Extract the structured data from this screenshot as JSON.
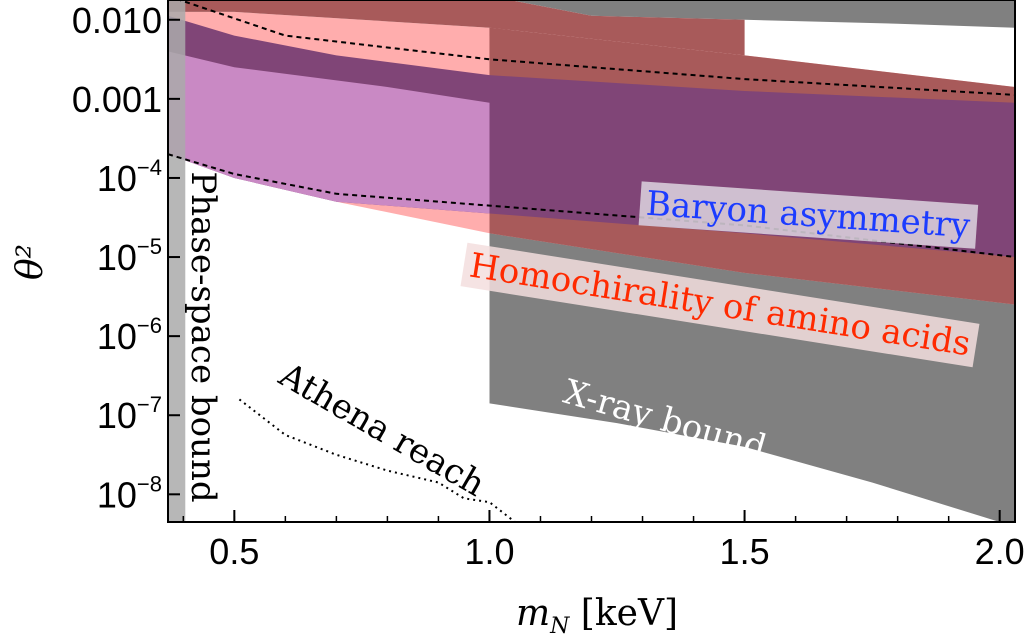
{
  "chart_data": {
    "type": "area",
    "title": "",
    "xlabel": "m_N [keV]",
    "ylabel": "θ²",
    "xlim": [
      0.37,
      2.03
    ],
    "ylim_log10": [
      -8.35,
      -1.75
    ],
    "y_scale": "log",
    "x_ticks": [
      {
        "value": 0.5,
        "label": "0.5"
      },
      {
        "value": 1.0,
        "label": "1.0"
      },
      {
        "value": 1.5,
        "label": "1.5"
      },
      {
        "value": 2.0,
        "label": "2.0"
      }
    ],
    "y_ticks": [
      {
        "log10": -2,
        "label": "0.010",
        "base": "",
        "exp": ""
      },
      {
        "log10": -3,
        "label": "0.001",
        "base": "",
        "exp": ""
      },
      {
        "log10": -4,
        "label": "",
        "base": "10",
        "exp": "−4"
      },
      {
        "log10": -5,
        "label": "",
        "base": "10",
        "exp": "−5"
      },
      {
        "log10": -6,
        "label": "",
        "base": "10",
        "exp": "−6"
      },
      {
        "log10": -7,
        "label": "",
        "base": "10",
        "exp": "−7"
      },
      {
        "log10": -8,
        "label": "",
        "base": "10",
        "exp": "−8"
      }
    ],
    "regions": [
      {
        "name": "X-ray bound",
        "color": "#808080",
        "upper": [
          [
            0.37,
            -1.0
          ],
          [
            2.03,
            -1.0
          ]
        ],
        "lower": [
          [
            0.37,
            -1.0
          ],
          [
            1.0,
            -1.7
          ],
          [
            1.2,
            -1.95
          ],
          [
            1.5,
            -2.0
          ],
          [
            1.8,
            -2.05
          ],
          [
            2.03,
            -2.1
          ]
        ]
      },
      {
        "name": "X-ray bound lower",
        "color": "#808080",
        "upper": [
          [
            1.0,
            -3.2
          ],
          [
            2.03,
            -3.2
          ]
        ],
        "lower": [
          [
            1.0,
            -6.85
          ],
          [
            1.25,
            -7.1
          ],
          [
            1.5,
            -7.4
          ],
          [
            1.75,
            -7.85
          ],
          [
            2.0,
            -8.35
          ],
          [
            2.03,
            -8.4
          ]
        ]
      },
      {
        "name": "Homochirality of amino acids",
        "color": "#ffadad",
        "upper": [
          [
            0.37,
            -1.9
          ],
          [
            0.5,
            -1.9
          ],
          [
            1.0,
            -2.1
          ],
          [
            1.5,
            -2.45
          ],
          [
            2.03,
            -2.85
          ]
        ],
        "lower": [
          [
            0.37,
            -3.3
          ],
          [
            0.45,
            -3.75
          ],
          [
            0.7,
            -4.3
          ],
          [
            1.0,
            -4.7
          ],
          [
            1.5,
            -5.2
          ],
          [
            2.03,
            -5.6
          ]
        ]
      },
      {
        "name": "Baryon asymmetry",
        "color": "#804577",
        "upper": [
          [
            0.37,
            -1.95
          ],
          [
            0.5,
            -2.2
          ],
          [
            0.7,
            -2.45
          ],
          [
            1.0,
            -2.7
          ],
          [
            1.5,
            -2.9
          ],
          [
            2.03,
            -3.05
          ]
        ],
        "lower": [
          [
            0.37,
            -3.7
          ],
          [
            0.5,
            -4.0
          ],
          [
            0.7,
            -4.3
          ],
          [
            1.0,
            -4.45
          ],
          [
            1.5,
            -4.7
          ],
          [
            2.03,
            -5.0
          ]
        ]
      },
      {
        "name": "Phase-space excluded",
        "color": "#aaaaaa",
        "upper": [
          [
            0.37,
            -1.75
          ],
          [
            0.404,
            -1.75
          ]
        ],
        "lower": [
          [
            0.37,
            -8.35
          ],
          [
            0.404,
            -8.35
          ]
        ]
      }
    ],
    "dashed_curves": [
      {
        "points": [
          [
            0.37,
            -1.7
          ],
          [
            0.6,
            -2.2
          ],
          [
            0.8,
            -2.35
          ],
          [
            1.0,
            -2.5
          ],
          [
            1.5,
            -2.75
          ],
          [
            2.03,
            -2.95
          ]
        ]
      },
      {
        "points": [
          [
            0.37,
            -3.7
          ],
          [
            0.5,
            -3.95
          ],
          [
            0.7,
            -4.2
          ],
          [
            1.0,
            -4.35
          ],
          [
            1.5,
            -4.6
          ],
          [
            2.03,
            -5.0
          ]
        ]
      }
    ],
    "athena_reach": [
      [
        0.51,
        -6.8
      ],
      [
        0.6,
        -7.25
      ],
      [
        0.7,
        -7.5
      ],
      [
        0.8,
        -7.7
      ],
      [
        0.9,
        -7.85
      ],
      [
        0.95,
        -8.05
      ],
      [
        1.0,
        -8.1
      ],
      [
        1.05,
        -8.35
      ]
    ],
    "labels": {
      "baryon": "Baryon asymmetry",
      "homochirality": "Homochirality of amino acids",
      "xray": "X-ray bound",
      "phase_space": "Phase-space bound",
      "athena": "Athena reach"
    }
  },
  "colors": {
    "xray": "#808080",
    "homochirality": "#ffadad",
    "baryon": "#804577",
    "baryon_text": "#1c3cff",
    "homochirality_text": "#ff2a00",
    "light_purple": "#c989c4",
    "brown": "#a85a5a"
  }
}
